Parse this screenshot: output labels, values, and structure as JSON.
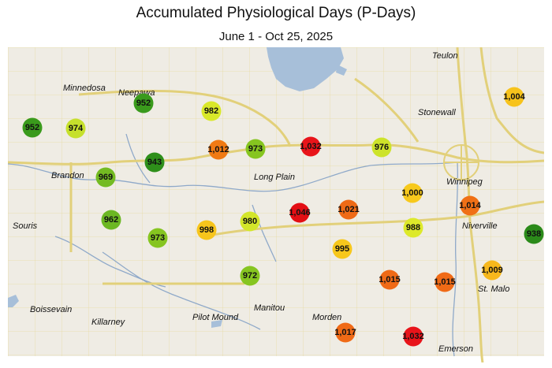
{
  "header": {
    "title": "Accumulated Physiological Days (P-Days)",
    "subtitle": "June 1 - Oct 25, 2025"
  },
  "colors": {
    "land": "#efece4",
    "water": "#a7bfd9",
    "grid_roads": "#e5d998",
    "highways": "#e2d07a",
    "rivers": "#8fa9c9",
    "border": "#c9c3b5"
  },
  "towns": [
    {
      "id": "teulon",
      "label": "Teulon"
    },
    {
      "id": "minnedosa",
      "label": "Minnedosa"
    },
    {
      "id": "neepawa",
      "label": "Neepawa"
    },
    {
      "id": "stonewall",
      "label": "Stonewall"
    },
    {
      "id": "winnipeg",
      "label": "Winnipeg"
    },
    {
      "id": "brandon",
      "label": "Brandon"
    },
    {
      "id": "long-plain",
      "label": "Long Plain"
    },
    {
      "id": "souris",
      "label": "Souris"
    },
    {
      "id": "niverville",
      "label": "Niverville"
    },
    {
      "id": "st-malo",
      "label": "St. Malo"
    },
    {
      "id": "boissevain",
      "label": "Boissevain"
    },
    {
      "id": "killarney",
      "label": "Killarney"
    },
    {
      "id": "pilot-mound",
      "label": "Pilot Mound"
    },
    {
      "id": "manitou",
      "label": "Manitou"
    },
    {
      "id": "morden",
      "label": "Morden"
    },
    {
      "id": "emerson",
      "label": "Emerson"
    }
  ],
  "stations": [
    {
      "id": "s1",
      "label": "952",
      "value": 952,
      "color": "#3a9a1c"
    },
    {
      "id": "s2",
      "label": "974",
      "value": 974,
      "color": "#c6e02c"
    },
    {
      "id": "s3",
      "label": "952",
      "value": 952,
      "color": "#3a9a1c"
    },
    {
      "id": "s4",
      "label": "982",
      "value": 982,
      "color": "#d9e82a"
    },
    {
      "id": "s5",
      "label": "1,004",
      "value": 1004,
      "color": "#f7c31c"
    },
    {
      "id": "s6",
      "label": "1,012",
      "value": 1012,
      "color": "#f07a14"
    },
    {
      "id": "s7",
      "label": "973",
      "value": 973,
      "color": "#86c520"
    },
    {
      "id": "s8",
      "label": "1,032",
      "value": 1032,
      "color": "#e8141a"
    },
    {
      "id": "s9",
      "label": "976",
      "value": 976,
      "color": "#cde32a"
    },
    {
      "id": "s10",
      "label": "943",
      "value": 943,
      "color": "#2e8f1a"
    },
    {
      "id": "s11",
      "label": "969",
      "value": 969,
      "color": "#74bb22"
    },
    {
      "id": "s12",
      "label": "1,000",
      "value": 1000,
      "color": "#f7c91c"
    },
    {
      "id": "s13",
      "label": "1,014",
      "value": 1014,
      "color": "#f07016"
    },
    {
      "id": "s14",
      "label": "962",
      "value": 962,
      "color": "#6cb723"
    },
    {
      "id": "s15",
      "label": "1,046",
      "value": 1046,
      "color": "#e30e14"
    },
    {
      "id": "s16",
      "label": "1,021",
      "value": 1021,
      "color": "#ef6a16"
    },
    {
      "id": "s17",
      "label": "998",
      "value": 998,
      "color": "#f7c51c"
    },
    {
      "id": "s18",
      "label": "980",
      "value": 980,
      "color": "#d3e62a"
    },
    {
      "id": "s19",
      "label": "988",
      "value": 988,
      "color": "#dde92a"
    },
    {
      "id": "s20",
      "label": "938",
      "value": 938,
      "color": "#2b8a1a"
    },
    {
      "id": "s21",
      "label": "973",
      "value": 973,
      "color": "#86c520"
    },
    {
      "id": "s22",
      "label": "995",
      "value": 995,
      "color": "#f7c71c"
    },
    {
      "id": "s23",
      "label": "1,009",
      "value": 1009,
      "color": "#f7b81c"
    },
    {
      "id": "s24",
      "label": "972",
      "value": 972,
      "color": "#86c520"
    },
    {
      "id": "s25",
      "label": "1,015",
      "value": 1015,
      "color": "#f06a16"
    },
    {
      "id": "s26",
      "label": "1,015",
      "value": 1015,
      "color": "#f06a16"
    },
    {
      "id": "s27",
      "label": "1,017",
      "value": 1017,
      "color": "#f06a16"
    },
    {
      "id": "s28",
      "label": "1,032",
      "value": 1032,
      "color": "#e8141a"
    }
  ]
}
